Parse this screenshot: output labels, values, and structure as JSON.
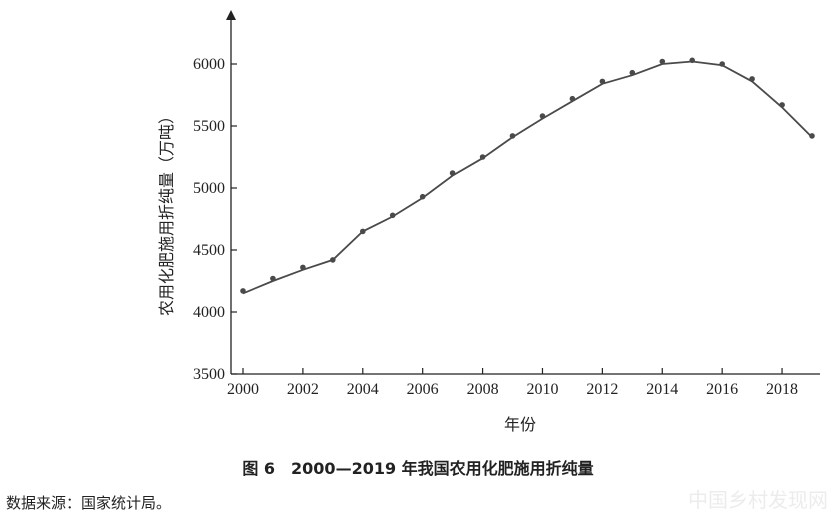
{
  "chart_data": {
    "type": "line",
    "xlabel": "年份",
    "ylabel": "农用化肥施用折纯量（万吨）",
    "xlim": [
      2000,
      2019
    ],
    "ylim": [
      3500,
      6300
    ],
    "x_ticks": [
      2000,
      2002,
      2004,
      2006,
      2008,
      2010,
      2012,
      2014,
      2016,
      2018
    ],
    "y_ticks": [
      3500,
      4000,
      4500,
      5000,
      5500,
      6000
    ],
    "x": [
      2000,
      2001,
      2002,
      2003,
      2004,
      2005,
      2006,
      2007,
      2008,
      2009,
      2010,
      2011,
      2012,
      2013,
      2014,
      2015,
      2016,
      2017,
      2018,
      2019
    ],
    "series": [
      {
        "points": [
          4170,
          4270,
          4360,
          4420,
          4650,
          4780,
          4930,
          5120,
          5250,
          5420,
          5580,
          5720,
          5860,
          5930,
          6020,
          6030,
          6000,
          5880,
          5670,
          5420
        ],
        "line": [
          4150,
          4250,
          4340,
          4420,
          4650,
          4770,
          4920,
          5100,
          5240,
          5410,
          5560,
          5700,
          5840,
          5910,
          6000,
          6020,
          5990,
          5860,
          5650,
          5410
        ]
      }
    ],
    "grid": false,
    "line_color": "#4a4a4a",
    "point_color": "#4a4a4a"
  },
  "caption": "图 6　2000—2019 年我国农用化肥施用折纯量",
  "source": "数据来源：国家统计局。",
  "watermark": "中国乡村发现网"
}
